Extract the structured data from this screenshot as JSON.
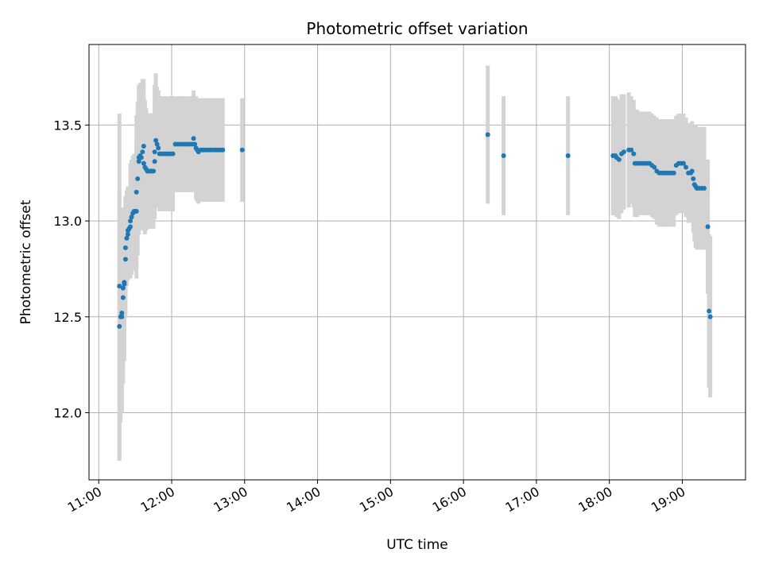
{
  "chart_data": {
    "type": "scatter",
    "title": "Photometric offset variation",
    "xlabel": "UTC time",
    "ylabel": "Photometric offset",
    "xlim": [
      "10:52",
      "19:52"
    ],
    "ylim": [
      11.65,
      13.92
    ],
    "x_ticks": [
      "11:00",
      "12:00",
      "13:00",
      "14:00",
      "15:00",
      "16:00",
      "17:00",
      "18:00",
      "19:00"
    ],
    "y_ticks": [
      "12.0",
      "12.5",
      "13.0",
      "13.5"
    ],
    "grid": true,
    "colors": {
      "points": "#1f77b4",
      "errorbars": "#d3d3d3",
      "grid": "#b0b0b0"
    },
    "series": [
      {
        "points": [
          [
            "11:17",
            12.66,
            0.9
          ],
          [
            "11:17",
            12.45,
            0.7
          ],
          [
            "11:18",
            12.5,
            0.55
          ],
          [
            "11:19",
            12.52,
            0.5
          ],
          [
            "11:19",
            12.5,
            0.5
          ],
          [
            "11:20",
            12.6,
            0.45
          ],
          [
            "11:20",
            12.65,
            0.42
          ],
          [
            "11:21",
            12.67,
            0.4
          ],
          [
            "11:21",
            12.68,
            0.38
          ],
          [
            "11:22",
            12.8,
            0.3
          ],
          [
            "11:22",
            12.86,
            0.27
          ],
          [
            "11:23",
            12.91,
            0.25
          ],
          [
            "11:24",
            12.93,
            0.24
          ],
          [
            "11:24",
            12.95,
            0.23
          ],
          [
            "11:25",
            12.96,
            0.22
          ],
          [
            "11:26",
            12.97,
            0.22
          ],
          [
            "11:26",
            13.0,
            0.3
          ],
          [
            "11:27",
            13.02,
            0.3
          ],
          [
            "11:28",
            13.04,
            0.3
          ],
          [
            "11:29",
            13.05,
            0.3
          ],
          [
            "11:30",
            13.05,
            0.3
          ],
          [
            "11:31",
            13.05,
            0.35
          ],
          [
            "11:31",
            13.15,
            0.4
          ],
          [
            "11:32",
            13.22,
            0.4
          ],
          [
            "11:33",
            13.31,
            0.38
          ],
          [
            "11:33",
            13.33,
            0.38
          ],
          [
            "11:34",
            13.34,
            0.38
          ],
          [
            "11:35",
            13.33,
            0.38
          ],
          [
            "11:36",
            13.36,
            0.38
          ],
          [
            "11:37",
            13.39,
            0.35
          ],
          [
            "11:37",
            13.3,
            0.35
          ],
          [
            "11:38",
            13.28,
            0.35
          ],
          [
            "11:39",
            13.27,
            0.32
          ],
          [
            "11:40",
            13.26,
            0.3
          ],
          [
            "11:41",
            13.26,
            0.3
          ],
          [
            "11:42",
            13.26,
            0.3
          ],
          [
            "11:43",
            13.26,
            0.3
          ],
          [
            "11:44",
            13.26,
            0.3
          ],
          [
            "11:45",
            13.26,
            0.3
          ],
          [
            "11:46",
            13.31,
            0.3
          ],
          [
            "11:46",
            13.36,
            0.35
          ],
          [
            "11:47",
            13.42,
            0.35
          ],
          [
            "11:48",
            13.4,
            0.3
          ],
          [
            "11:49",
            13.38,
            0.3
          ],
          [
            "11:50",
            13.35,
            0.3
          ],
          [
            "11:51",
            13.35,
            0.3
          ],
          [
            "11:53",
            13.35,
            0.3
          ],
          [
            "11:55",
            13.35,
            0.3
          ],
          [
            "11:57",
            13.35,
            0.3
          ],
          [
            "11:59",
            13.35,
            0.3
          ],
          [
            "12:01",
            13.35,
            0.3
          ],
          [
            "12:03",
            13.4,
            0.25
          ],
          [
            "12:05",
            13.4,
            0.25
          ],
          [
            "12:07",
            13.4,
            0.25
          ],
          [
            "12:09",
            13.4,
            0.25
          ],
          [
            "12:11",
            13.4,
            0.25
          ],
          [
            "12:13",
            13.4,
            0.25
          ],
          [
            "12:15",
            13.4,
            0.25
          ],
          [
            "12:17",
            13.4,
            0.25
          ],
          [
            "12:18",
            13.43,
            0.25
          ],
          [
            "12:19",
            13.4,
            0.25
          ],
          [
            "12:20",
            13.38,
            0.27
          ],
          [
            "12:21",
            13.37,
            0.27
          ],
          [
            "12:22",
            13.36,
            0.27
          ],
          [
            "12:24",
            13.37,
            0.27
          ],
          [
            "12:26",
            13.37,
            0.27
          ],
          [
            "12:28",
            13.37,
            0.27
          ],
          [
            "12:30",
            13.37,
            0.27
          ],
          [
            "12:32",
            13.37,
            0.27
          ],
          [
            "12:34",
            13.37,
            0.27
          ],
          [
            "12:36",
            13.37,
            0.27
          ],
          [
            "12:38",
            13.37,
            0.27
          ],
          [
            "12:40",
            13.37,
            0.27
          ],
          [
            "12:42",
            13.37,
            0.27
          ],
          [
            "12:58",
            13.37,
            0.27
          ],
          [
            "16:20",
            13.45,
            0.36
          ],
          [
            "16:33",
            13.34,
            0.31
          ],
          [
            "17:26",
            13.34,
            0.31
          ],
          [
            "18:03",
            13.34,
            0.31
          ],
          [
            "18:05",
            13.34,
            0.31
          ],
          [
            "18:06",
            13.33,
            0.31
          ],
          [
            "18:08",
            13.32,
            0.31
          ],
          [
            "18:10",
            13.35,
            0.31
          ],
          [
            "18:12",
            13.36,
            0.3
          ],
          [
            "18:16",
            13.37,
            0.3
          ],
          [
            "18:18",
            13.37,
            0.28
          ],
          [
            "18:20",
            13.35,
            0.28
          ],
          [
            "18:21",
            13.3,
            0.28
          ],
          [
            "18:23",
            13.3,
            0.28
          ],
          [
            "18:25",
            13.3,
            0.27
          ],
          [
            "18:27",
            13.3,
            0.27
          ],
          [
            "18:29",
            13.3,
            0.27
          ],
          [
            "18:31",
            13.3,
            0.27
          ],
          [
            "18:33",
            13.3,
            0.27
          ],
          [
            "18:35",
            13.29,
            0.27
          ],
          [
            "18:37",
            13.28,
            0.27
          ],
          [
            "18:39",
            13.26,
            0.28
          ],
          [
            "18:41",
            13.25,
            0.28
          ],
          [
            "18:43",
            13.25,
            0.28
          ],
          [
            "18:45",
            13.25,
            0.28
          ],
          [
            "18:47",
            13.25,
            0.28
          ],
          [
            "18:49",
            13.25,
            0.28
          ],
          [
            "18:51",
            13.25,
            0.28
          ],
          [
            "18:53",
            13.25,
            0.28
          ],
          [
            "18:55",
            13.29,
            0.26
          ],
          [
            "18:57",
            13.3,
            0.26
          ],
          [
            "18:59",
            13.3,
            0.26
          ],
          [
            "19:01",
            13.3,
            0.26
          ],
          [
            "19:03",
            13.28,
            0.26
          ],
          [
            "19:05",
            13.25,
            0.26
          ],
          [
            "19:07",
            13.25,
            0.26
          ],
          [
            "19:08",
            13.26,
            0.26
          ],
          [
            "19:09",
            13.22,
            0.28
          ],
          [
            "19:10",
            13.19,
            0.3
          ],
          [
            "19:11",
            13.18,
            0.32
          ],
          [
            "19:12",
            13.17,
            0.32
          ],
          [
            "19:14",
            13.17,
            0.32
          ],
          [
            "19:16",
            13.17,
            0.32
          ],
          [
            "19:18",
            13.17,
            0.32
          ],
          [
            "19:21",
            12.97,
            0.35
          ],
          [
            "19:22",
            12.53,
            0.4
          ],
          [
            "19:23",
            12.5,
            0.42
          ]
        ]
      }
    ]
  }
}
